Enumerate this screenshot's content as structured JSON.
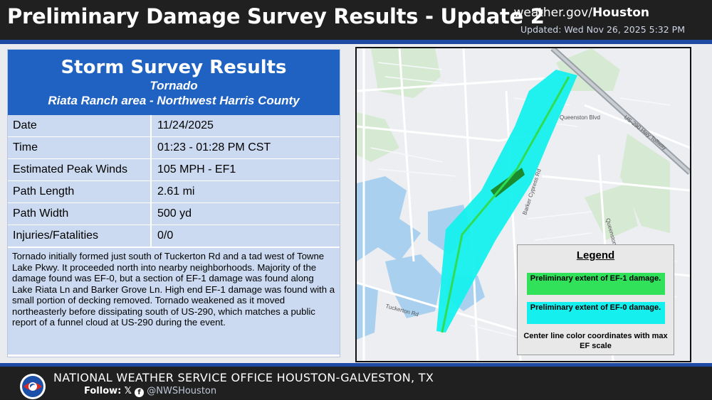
{
  "header": {
    "title": "Preliminary Damage Survey Results - Update 2",
    "site_prefix": "weather.gov/",
    "site_office": "Houston",
    "updated": "Updated: Wed Nov 26, 2025 5:32 PM"
  },
  "survey": {
    "title": "Storm Survey Results",
    "type": "Tornado",
    "area": "Riata Ranch area - Northwest Harris County",
    "rows": [
      {
        "label": "Date",
        "value": "11/24/2025"
      },
      {
        "label": "Time",
        "value": "01:23 - 01:28 PM CST"
      },
      {
        "label": "Estimated Peak Winds",
        "value": "105 MPH - EF1"
      },
      {
        "label": "Path Length",
        "value": "2.61 mi"
      },
      {
        "label": "Path Width",
        "value": "500 yd"
      },
      {
        "label": "Injuries/Fatalities",
        "value": "0/0"
      }
    ],
    "description": "Tornado initially formed just south of Tuckerton Rd and a tad west of Towne Lake Pkwy. It proceeded north into nearby neighborhoods. Majority of the damage found was EF-0, but a section of EF-1 damage was found along Lake Riata Ln and Barker Grove Ln. High end EF-1 damage was found with a small portion of decking removed. Tornado weakened as it moved northeasterly before dissipating south of US-290, which matches a public report of a funnel cloud at US-290 during the event."
  },
  "map": {
    "roads": {
      "queenston": "Queenston Blvd",
      "barker_cypress": "Barker Cypress Rd",
      "tuckerton": "Tuckerton Rd",
      "us290": "US-290 Hwy Tollway",
      "queenston_south": "Queenston"
    },
    "colors": {
      "ef0": "#15f0ee",
      "ef1": "#32e15a",
      "centerline": "#2fdc55"
    }
  },
  "legend": {
    "title": "Legend",
    "ef1": "Preliminary extent of EF-1 damage.",
    "ef0": "Preliminary extent of EF-0 damage.",
    "center": "Center line color coordinates with max EF scale"
  },
  "footer": {
    "office": "NATIONAL WEATHER SERVICE OFFICE HOUSTON-GALVESTON, TX",
    "follow": "Follow:",
    "handle": "@NWSHouston"
  }
}
